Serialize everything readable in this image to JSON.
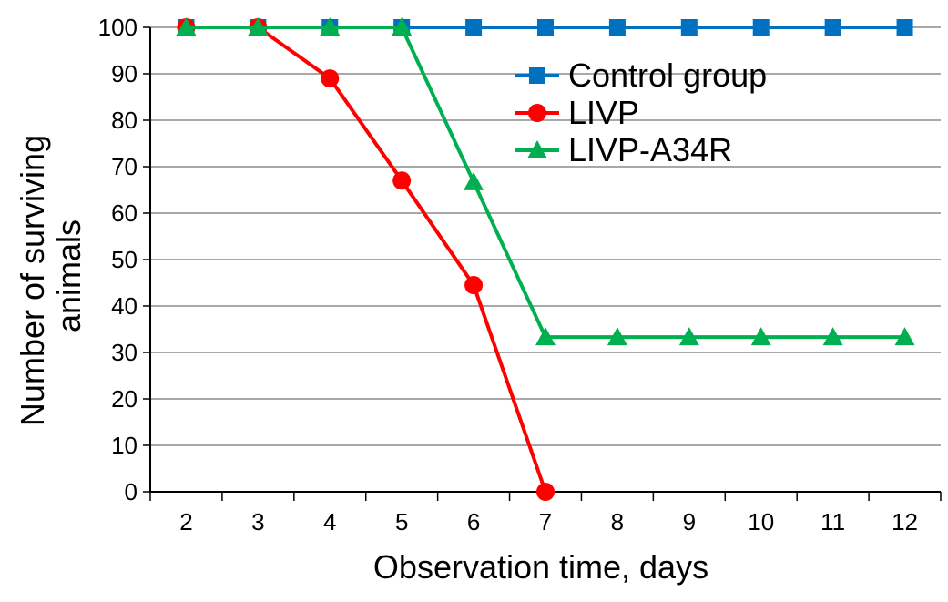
{
  "chart_data": {
    "type": "line",
    "title": "",
    "xlabel": "Observation time, days",
    "ylabel_lines": [
      "Number of surviving",
      "animals"
    ],
    "x": [
      2,
      3,
      4,
      5,
      6,
      7,
      8,
      9,
      10,
      11,
      12
    ],
    "x_tick_labels": [
      "2",
      "3",
      "4",
      "5",
      "6",
      "7",
      "8",
      "9",
      "10",
      "11",
      "12"
    ],
    "y_tick_labels": [
      "0",
      "10",
      "20",
      "30",
      "40",
      "50",
      "60",
      "70",
      "80",
      "90",
      "100"
    ],
    "ylim": [
      0,
      100
    ],
    "grid": "horizontal",
    "legend_position": "top-right",
    "series": [
      {
        "name": "Control group",
        "color": "#0070c0",
        "marker": "square",
        "values": [
          100,
          100,
          100,
          100,
          100,
          100,
          100,
          100,
          100,
          100,
          100
        ]
      },
      {
        "name": "LIVP",
        "color": "#ff0000",
        "marker": "circle",
        "values": [
          100,
          100,
          89,
          67,
          44.5,
          0,
          null,
          null,
          null,
          null,
          null
        ]
      },
      {
        "name": "LIVP-A34R",
        "color": "#00b050",
        "marker": "triangle",
        "values": [
          100,
          100,
          100,
          100,
          66.7,
          33.3,
          33.3,
          33.3,
          33.3,
          33.3,
          33.3
        ]
      }
    ]
  }
}
